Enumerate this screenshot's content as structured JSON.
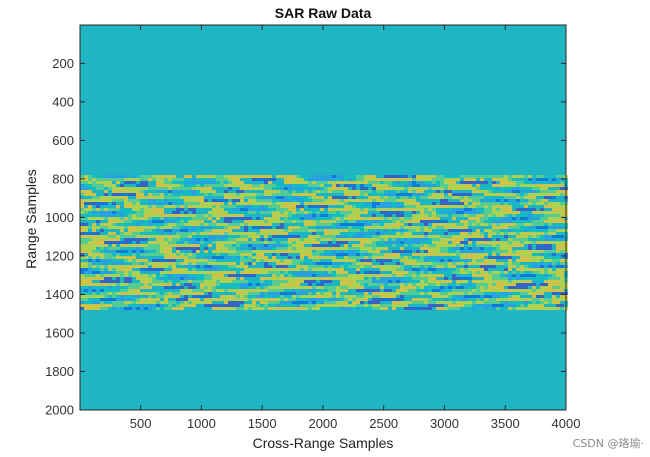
{
  "chart_data": {
    "type": "heatmap",
    "title": "SAR Raw Data",
    "xlabel": "Cross-Range Samples",
    "ylabel": "Range Samples",
    "xlim": [
      1,
      4000
    ],
    "ylim": [
      1,
      2000
    ],
    "y_direction": "reversed",
    "xticks": [
      500,
      1000,
      1500,
      2000,
      2500,
      3000,
      3500,
      4000
    ],
    "yticks": [
      200,
      400,
      600,
      800,
      1000,
      1200,
      1400,
      1600,
      1800,
      2000
    ],
    "colormap": "parula",
    "background_color": "#1FB5C2",
    "signal_band": {
      "range_start": 780,
      "range_end": 1480
    },
    "grid": false,
    "colorbar": false
  },
  "watermark": {
    "text": "CSDN @珞瑜·"
  }
}
